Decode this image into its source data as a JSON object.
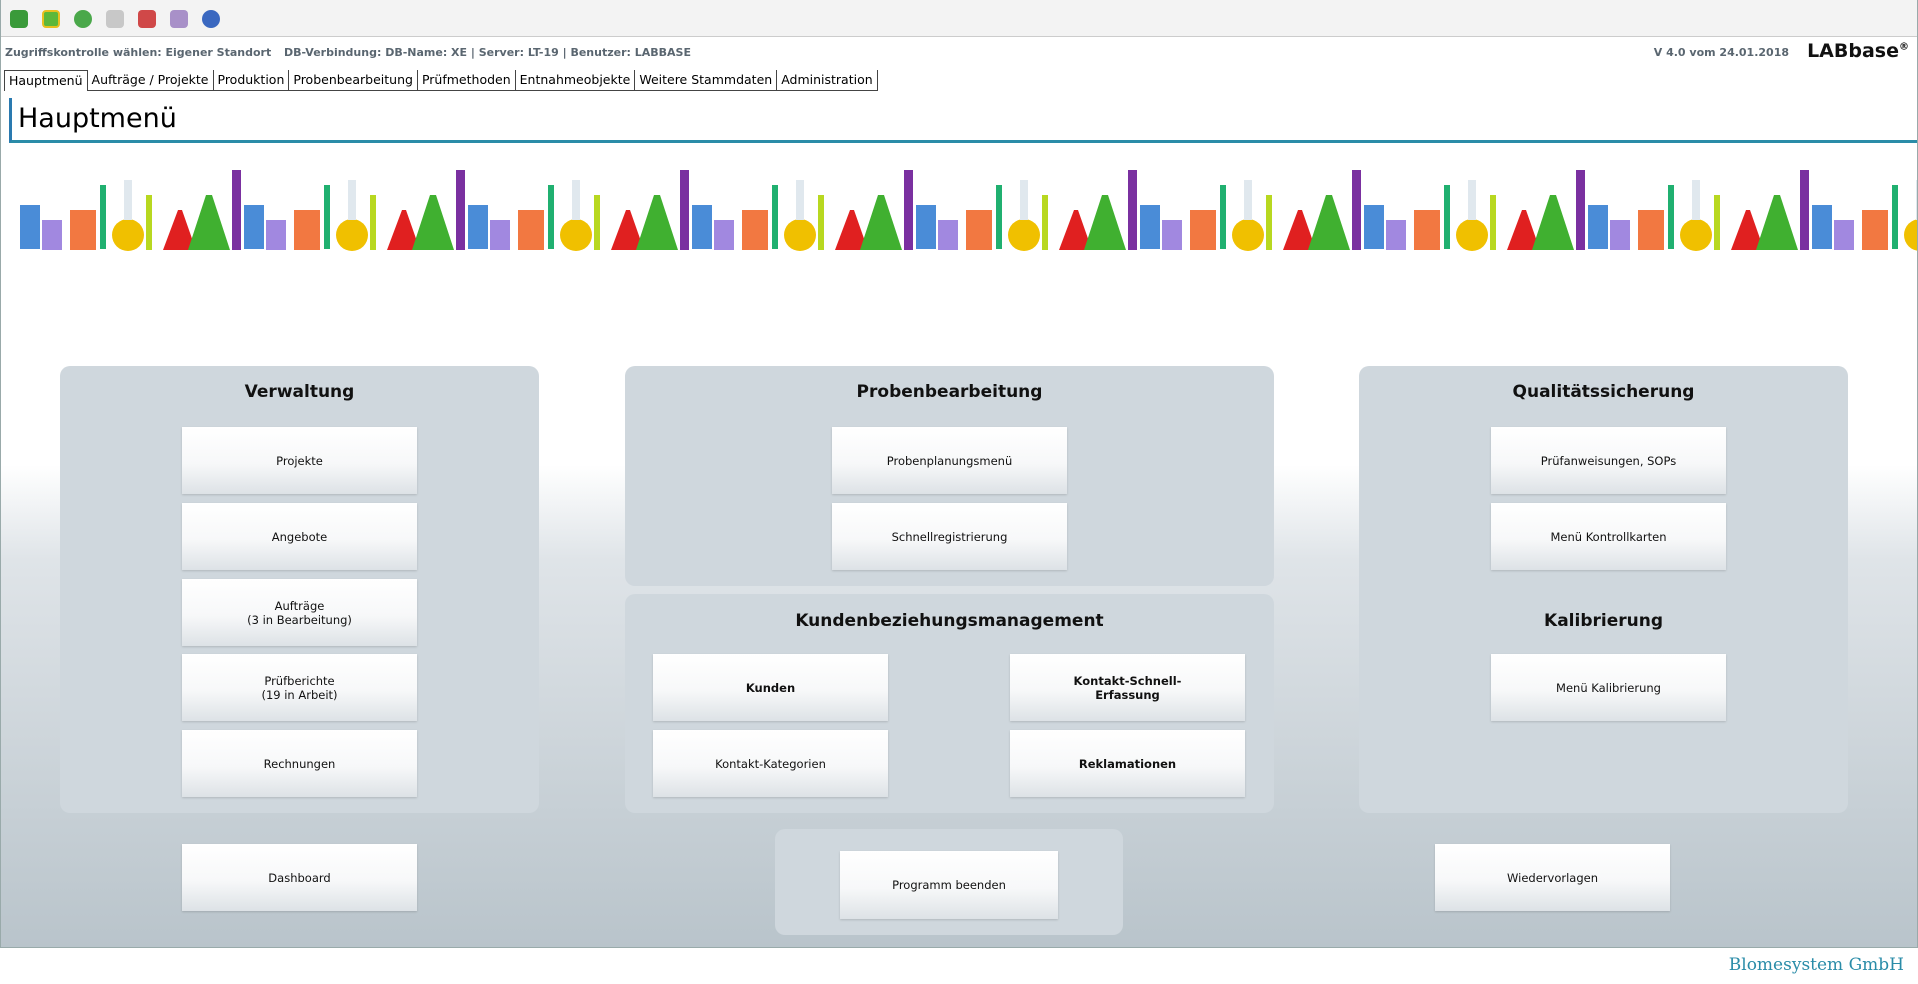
{
  "status": {
    "access": "Zugriffskontrolle wählen: Eigener Standort",
    "db": "DB-Verbindung: DB-Name: XE | Server: LT-19 | Benutzer: LABBASE",
    "version": "V 4.0 vom 24.01.2018",
    "brand": "LABbase",
    "brand_mark": "®"
  },
  "tabs": [
    "Hauptmenü",
    "Aufträge / Projekte",
    "Produktion",
    "Probenbearbeitung",
    "Prüfmethoden",
    "Entnahmeobjekte",
    "Weitere Stammdaten",
    "Administration"
  ],
  "active_tab": 0,
  "page_title": "Hauptmenü",
  "panels": [
    {
      "title": "Verwaltung",
      "buttons": [
        {
          "lines": [
            "Projekte"
          ]
        },
        {
          "lines": [
            "Angebote"
          ]
        },
        {
          "lines": [
            "Aufträge",
            "(3 in Bearbeitung)"
          ]
        },
        {
          "lines": [
            "Prüfberichte",
            "(19 in Arbeit)"
          ]
        },
        {
          "lines": [
            "Rechnungen"
          ]
        }
      ]
    },
    {
      "title": "Probenbearbeitung",
      "buttons": [
        {
          "lines": [
            "Probenplanungsmenü"
          ]
        },
        {
          "lines": [
            "Schnellregistrierung"
          ]
        }
      ]
    },
    {
      "title": "Kundenbeziehungsmanagement",
      "buttons": [
        {
          "lines": [
            "Kunden"
          ],
          "bold": true
        },
        {
          "lines": [
            "Kontakt-Schnell-",
            "Erfassung"
          ],
          "bold": true
        },
        {
          "lines": [
            "Kontakt-Kategorien"
          ]
        },
        {
          "lines": [
            "Reklamationen"
          ],
          "bold": true
        }
      ]
    },
    {
      "title": "Qualitätssicherung",
      "buttons": [
        {
          "lines": [
            "Prüfanweisungen, SOPs"
          ]
        },
        {
          "lines": [
            "Menü Kontrollkarten"
          ]
        }
      ]
    },
    {
      "title": "Kalibrierung",
      "buttons": [
        {
          "lines": [
            "Menü Kalibrierung"
          ]
        }
      ]
    }
  ],
  "standalone": [
    "Dashboard",
    "Programm beenden",
    "Wiedervorlagen"
  ],
  "footer": "Blomesystem GmbH"
}
